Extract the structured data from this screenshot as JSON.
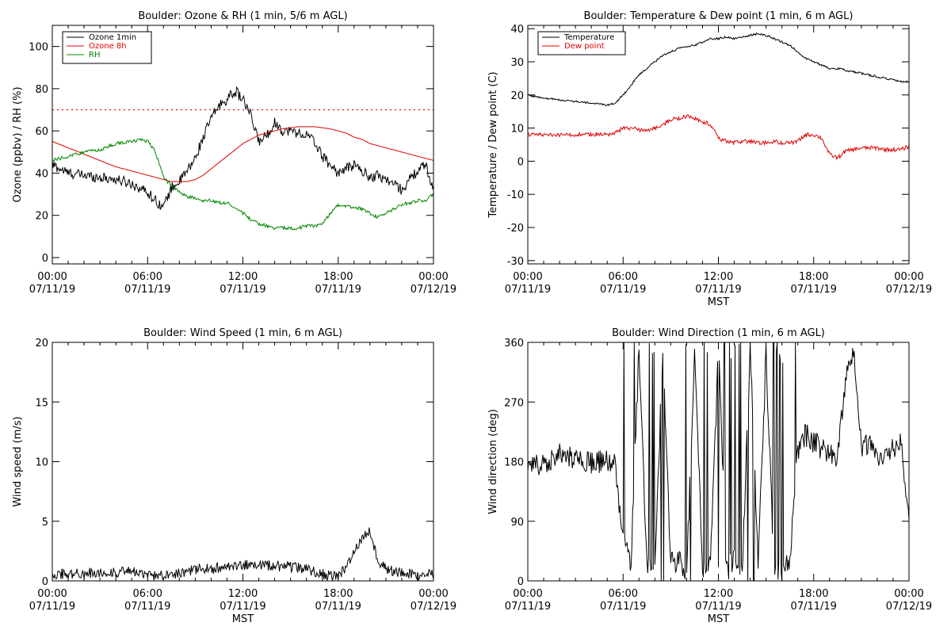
{
  "chart_data": [
    {
      "type": "line",
      "title": "Boulder: Ozone & RH (1 min, 5/6 m AGL)",
      "xlabel": "",
      "ylabel": "Ozone (ppbv) / RH (%)",
      "ylim": [
        -3,
        110
      ],
      "yticks": [
        "0",
        "20",
        "40",
        "60",
        "80",
        "100"
      ],
      "ytick_values": [
        0,
        20,
        40,
        60,
        80,
        100
      ],
      "xticks": [
        {
          "time": "00:00",
          "date": "07/11/19"
        },
        {
          "time": "06:00",
          "date": "07/11/19"
        },
        {
          "time": "12:00",
          "date": "07/11/19"
        },
        {
          "time": "18:00",
          "date": "07/11/19"
        },
        {
          "time": "00:00",
          "date": "07/12/19"
        }
      ],
      "reference_line": {
        "y": 70,
        "color": "#e00000",
        "style": "dotted"
      },
      "legend": {
        "position": "top-left",
        "box": true
      },
      "x_hours": [
        0,
        1,
        2,
        3,
        4,
        5,
        5.5,
        6,
        6.5,
        7,
        7.5,
        8,
        8.5,
        9,
        9.5,
        10,
        10.5,
        11,
        11.5,
        12,
        12.5,
        13,
        13.5,
        14,
        14.5,
        15,
        15.5,
        16,
        16.5,
        17,
        17.5,
        18,
        18.5,
        19,
        19.5,
        20,
        20.5,
        21,
        21.5,
        22,
        22.5,
        23,
        23.5,
        24
      ],
      "series": [
        {
          "name": "Ozone 1min",
          "color": "#000000",
          "noise": 2.5,
          "values": [
            44,
            40,
            39,
            38,
            37,
            35,
            33,
            31,
            27,
            24,
            33,
            36,
            41,
            47,
            57,
            66,
            72,
            75,
            79,
            75,
            67,
            55,
            58,
            64,
            60,
            60,
            59,
            58,
            55,
            48,
            44,
            40,
            42,
            44,
            41,
            38,
            39,
            37,
            35,
            32,
            37,
            41,
            44,
            32
          ]
        },
        {
          "name": "Ozone 8h",
          "color": "#e00000",
          "noise": 0,
          "values": [
            55,
            52,
            49,
            46,
            43,
            41,
            40,
            39,
            38,
            37,
            36,
            36,
            36,
            37,
            39,
            42,
            45,
            48,
            51,
            54,
            56,
            58,
            59,
            60,
            61,
            61.5,
            62,
            62,
            62,
            61.5,
            61,
            60,
            59,
            57,
            56,
            54,
            53,
            52,
            51,
            50,
            49,
            48,
            47,
            46
          ]
        },
        {
          "name": "RH",
          "color": "#008800",
          "noise": 0.8,
          "values": [
            46,
            48,
            50,
            51,
            54,
            55,
            56,
            55,
            50,
            38,
            34,
            31,
            29,
            28,
            27,
            27,
            26,
            26,
            24,
            21,
            18,
            16,
            15,
            14,
            14,
            14,
            14,
            15,
            15,
            16,
            21,
            25,
            24,
            24,
            23,
            21,
            19,
            21,
            23,
            25,
            26,
            27,
            27,
            30
          ]
        }
      ]
    },
    {
      "type": "line",
      "title": "Boulder: Temperature & Dew point (1 min, 6 m AGL)",
      "xlabel": "MST",
      "ylabel": "Temperature / Dew point (C)",
      "ylim": [
        -31,
        41
      ],
      "yticks": [
        "-30",
        "-20",
        "-10",
        "0",
        "10",
        "20",
        "30",
        "40"
      ],
      "ytick_values": [
        -30,
        -20,
        -10,
        0,
        10,
        20,
        30,
        40
      ],
      "xticks": [
        {
          "time": "00:00",
          "date": "07/11/19"
        },
        {
          "time": "06:00",
          "date": "07/11/19"
        },
        {
          "time": "12:00",
          "date": "07/11/19"
        },
        {
          "time": "18:00",
          "date": "07/11/19"
        },
        {
          "time": "00:00",
          "date": "07/12/19"
        }
      ],
      "legend": {
        "position": "top-left",
        "box": true
      },
      "x_hours": [
        0,
        1,
        2,
        3,
        4,
        5,
        5.5,
        6,
        6.5,
        7,
        7.5,
        8,
        8.5,
        9,
        9.5,
        10,
        10.5,
        11,
        11.5,
        12,
        12.5,
        13,
        13.5,
        14,
        14.5,
        15,
        15.5,
        16,
        16.5,
        17,
        17.5,
        18,
        18.5,
        19,
        19.5,
        20,
        20.5,
        21,
        21.5,
        22,
        22.5,
        23,
        23.5,
        24
      ],
      "series": [
        {
          "name": "Temperature",
          "color": "#000000",
          "noise": 0.3,
          "values": [
            20,
            19,
            18.5,
            18,
            17.5,
            17,
            17.5,
            20,
            23,
            26,
            28,
            30,
            32,
            33,
            34,
            34.5,
            35,
            36,
            37,
            37,
            37.5,
            37,
            37.5,
            38,
            38.5,
            38,
            37,
            36,
            35,
            33,
            31,
            30,
            29,
            28,
            28,
            27.5,
            27,
            26.5,
            26,
            25.5,
            25,
            24.5,
            24,
            24
          ]
        },
        {
          "name": "Dew point",
          "color": "#e00000",
          "noise": 0.6,
          "values": [
            8,
            8,
            8,
            8,
            8,
            8,
            8.5,
            10,
            10,
            9.5,
            9.5,
            10,
            11,
            12.5,
            13,
            13.5,
            13,
            12,
            11,
            7,
            6,
            5.5,
            6,
            6,
            5.5,
            5.5,
            6,
            5.5,
            5.5,
            6,
            8,
            8,
            7,
            2,
            1,
            3,
            3.5,
            4,
            4,
            4,
            3.5,
            3.5,
            3.5,
            4.5
          ]
        }
      ]
    },
    {
      "type": "line",
      "title": "Boulder: Wind Speed (1 min, 6 m AGL)",
      "xlabel": "MST",
      "ylabel": "Wind speed (m/s)",
      "ylim": [
        0,
        20
      ],
      "yticks": [
        "0",
        "5",
        "10",
        "15",
        "20"
      ],
      "ytick_values": [
        0,
        5,
        10,
        15,
        20
      ],
      "xticks": [
        {
          "time": "00:00",
          "date": "07/11/19"
        },
        {
          "time": "06:00",
          "date": "07/11/19"
        },
        {
          "time": "12:00",
          "date": "07/11/19"
        },
        {
          "time": "18:00",
          "date": "07/11/19"
        },
        {
          "time": "00:00",
          "date": "07/12/19"
        }
      ],
      "x_hours": [
        0,
        1,
        2,
        3,
        4,
        5,
        5.5,
        6,
        6.5,
        7,
        7.5,
        8,
        8.5,
        9,
        9.5,
        10,
        10.5,
        11,
        11.5,
        12,
        12.5,
        13,
        13.5,
        14,
        14.5,
        15,
        15.5,
        16,
        16.5,
        17,
        17.5,
        18,
        18.5,
        19,
        19.5,
        20,
        20.5,
        21,
        21.5,
        22,
        22.5,
        23,
        23.5,
        24
      ],
      "series": [
        {
          "name": "",
          "color": "#000000",
          "noise": 0.45,
          "values": [
            0.6,
            0.6,
            0.6,
            0.7,
            0.7,
            0.8,
            0.6,
            0.5,
            0.4,
            0.6,
            0.6,
            0.7,
            0.8,
            0.9,
            1.0,
            1.0,
            1.1,
            1.1,
            1.2,
            1.3,
            1.4,
            1.4,
            1.3,
            1.3,
            1.2,
            1.2,
            1.1,
            1.0,
            0.8,
            0.6,
            0.4,
            0.3,
            1.2,
            2.5,
            3.5,
            4.2,
            1.8,
            1.0,
            0.8,
            0.7,
            0.6,
            0.5,
            0.5,
            0.6
          ]
        }
      ]
    },
    {
      "type": "line",
      "title": "Boulder: Wind Direction (1 min, 6 m AGL)",
      "xlabel": "MST",
      "ylabel": "Wind direction (deg)",
      "ylim": [
        0,
        360
      ],
      "yticks": [
        "0",
        "90",
        "180",
        "270",
        "360"
      ],
      "ytick_values": [
        0,
        90,
        180,
        270,
        360
      ],
      "xticks": [
        {
          "time": "00:00",
          "date": "07/11/19"
        },
        {
          "time": "06:00",
          "date": "07/11/19"
        },
        {
          "time": "12:00",
          "date": "07/11/19"
        },
        {
          "time": "18:00",
          "date": "07/11/19"
        },
        {
          "time": "00:00",
          "date": "07/12/19"
        }
      ],
      "x_hours": [
        0,
        1,
        2,
        3,
        4,
        5,
        5.5,
        6,
        6.5,
        7,
        7.5,
        8,
        8.5,
        9,
        9.5,
        10,
        10.5,
        11,
        11.5,
        12,
        12.5,
        13,
        13.5,
        14,
        14.5,
        15,
        15.5,
        16,
        16.5,
        17,
        17.5,
        18,
        18.5,
        19,
        19.5,
        20,
        20.5,
        21,
        21.5,
        22,
        22.5,
        23,
        23.5,
        24
      ],
      "series": [
        {
          "name": "",
          "color": "#000000",
          "noise": 18,
          "wrap": true,
          "values": [
            170,
            180,
            190,
            185,
            180,
            180,
            175,
            60,
            30,
            350,
            20,
            15,
            350,
            25,
            30,
            10,
            340,
            20,
            25,
            350,
            15,
            30,
            20,
            350,
            25,
            340,
            20,
            15,
            30,
            200,
            220,
            210,
            200,
            190,
            180,
            300,
            350,
            200,
            210,
            180,
            190,
            200,
            210,
            100
          ]
        }
      ]
    }
  ]
}
